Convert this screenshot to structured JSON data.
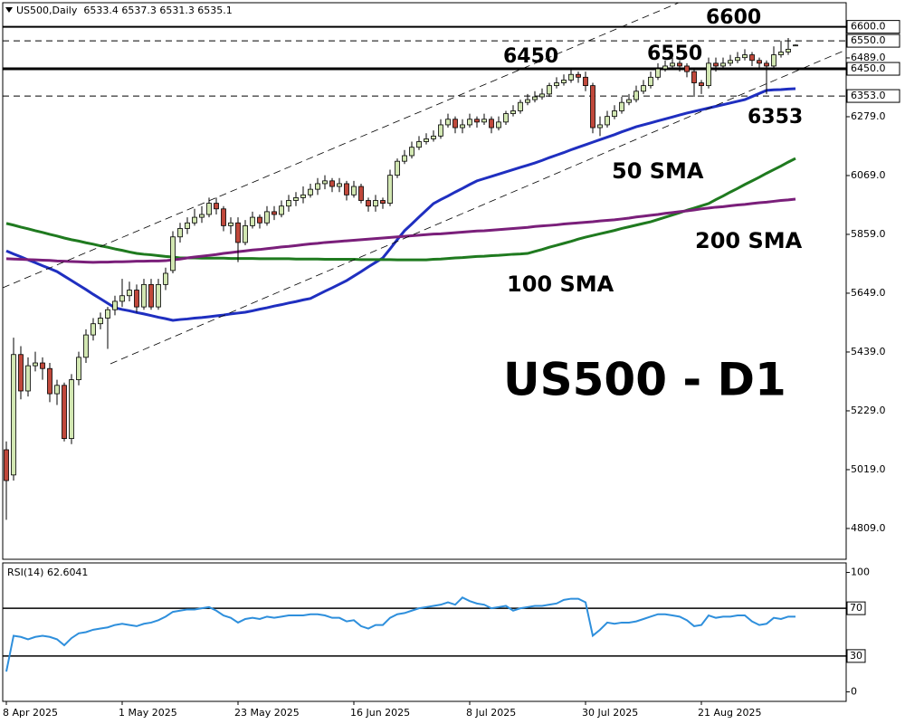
{
  "chart_data": {
    "type": "candlestick",
    "header": "US500,Daily  6533.4 6537.3 6531.3 6535.1",
    "categories": [
      "8 Apr 2025",
      null,
      null,
      null,
      null,
      null,
      null,
      null,
      null,
      null,
      null,
      null,
      null,
      null,
      null,
      null,
      "1 May 2025",
      null,
      null,
      null,
      null,
      null,
      null,
      null,
      null,
      null,
      null,
      null,
      null,
      null,
      null,
      null,
      "23 May 2025",
      null,
      null,
      null,
      null,
      null,
      null,
      null,
      null,
      null,
      null,
      null,
      null,
      null,
      null,
      null,
      "16 Jun 2025",
      null,
      null,
      null,
      null,
      null,
      null,
      null,
      null,
      null,
      null,
      null,
      null,
      null,
      null,
      null,
      "8 Jul 2025",
      null,
      null,
      null,
      null,
      null,
      null,
      null,
      null,
      null,
      null,
      null,
      null,
      null,
      null,
      null,
      "30 Jul 2025",
      null,
      null,
      null,
      null,
      null,
      null,
      null,
      null,
      null,
      null,
      null,
      null,
      null,
      null,
      null,
      "21 Aug 2025",
      null,
      null,
      null,
      null,
      null,
      null,
      null,
      null,
      null,
      null,
      null,
      null,
      null
    ],
    "open": [
      5090,
      5000,
      5430,
      5300,
      5390,
      5400,
      5380,
      5290,
      5320,
      5130,
      5340,
      5420,
      5500,
      5540,
      5560,
      5590,
      5620,
      5640,
      5660,
      5600,
      5680,
      5600,
      5680,
      5730,
      5850,
      5880,
      5900,
      5920,
      5930,
      5970,
      5950,
      5890,
      5900,
      5830,
      5890,
      5920,
      5900,
      5940,
      5930,
      5960,
      5980,
      5990,
      6000,
      6020,
      6040,
      6050,
      6030,
      6040,
      6000,
      6030,
      5980,
      5960,
      5980,
      5970,
      6070,
      6120,
      6140,
      6170,
      6190,
      6200,
      6210,
      6250,
      6270,
      6240,
      6250,
      6270,
      6260,
      6270,
      6240,
      6260,
      6290,
      6300,
      6330,
      6340,
      6350,
      6360,
      6390,
      6400,
      6410,
      6430,
      6420,
      6390,
      6240,
      6250,
      6280,
      6300,
      6330,
      6340,
      6370,
      6390,
      6420,
      6450,
      6460,
      6470,
      6460,
      6440,
      6400,
      6390,
      6470,
      6460,
      6470,
      6480,
      6490,
      6500,
      6480,
      6470,
      6460,
      6500,
      6510,
      6533
    ],
    "high": [
      5120,
      5490,
      5460,
      5420,
      5440,
      5420,
      5400,
      5340,
      5330,
      5360,
      5440,
      5520,
      5560,
      5580,
      5600,
      5640,
      5700,
      5690,
      5680,
      5700,
      5700,
      5700,
      5740,
      5870,
      5900,
      5920,
      5950,
      5960,
      5990,
      5990,
      5960,
      5920,
      5920,
      5910,
      5940,
      5930,
      5960,
      5960,
      5980,
      6000,
      6010,
      6030,
      6040,
      6060,
      6070,
      6060,
      6060,
      6050,
      6050,
      6040,
      5990,
      6000,
      5990,
      6090,
      6130,
      6160,
      6190,
      6210,
      6220,
      6230,
      6270,
      6290,
      6280,
      6270,
      6290,
      6280,
      6290,
      6280,
      6280,
      6300,
      6320,
      6340,
      6360,
      6370,
      6380,
      6400,
      6420,
      6430,
      6450,
      6440,
      6440,
      6400,
      6280,
      6300,
      6320,
      6350,
      6360,
      6390,
      6410,
      6440,
      6470,
      6480,
      6490,
      6480,
      6470,
      6450,
      6410,
      6490,
      6490,
      6490,
      6500,
      6510,
      6520,
      6510,
      6490,
      6480,
      6530,
      6550,
      6560,
      6537
    ],
    "low": [
      4840,
      4980,
      5270,
      5280,
      5370,
      5340,
      5260,
      5250,
      5120,
      5110,
      5320,
      5400,
      5480,
      5520,
      5450,
      5570,
      5600,
      5620,
      5580,
      5590,
      5590,
      5590,
      5660,
      5720,
      5830,
      5860,
      5890,
      5900,
      5920,
      5930,
      5870,
      5860,
      5760,
      5820,
      5880,
      5880,
      5890,
      5910,
      5920,
      5940,
      5960,
      5970,
      5990,
      6000,
      6020,
      6010,
      6010,
      5980,
      5990,
      5970,
      5940,
      5940,
      5950,
      5960,
      6060,
      6110,
      6130,
      6160,
      6180,
      6190,
      6200,
      6240,
      6220,
      6220,
      6240,
      6240,
      6250,
      6220,
      6230,
      6250,
      6280,
      6290,
      6320,
      6330,
      6340,
      6350,
      6380,
      6390,
      6400,
      6400,
      6370,
      6220,
      6210,
      6240,
      6270,
      6290,
      6320,
      6330,
      6360,
      6380,
      6410,
      6440,
      6450,
      6440,
      6420,
      6350,
      6360,
      6380,
      6440,
      6450,
      6460,
      6470,
      6480,
      6460,
      6450,
      6360,
      6450,
      6490,
      6500,
      6531
    ],
    "close": [
      4980,
      5430,
      5300,
      5390,
      5400,
      5380,
      5290,
      5320,
      5130,
      5340,
      5420,
      5500,
      5540,
      5560,
      5590,
      5620,
      5640,
      5660,
      5600,
      5680,
      5600,
      5680,
      5720,
      5850,
      5880,
      5900,
      5920,
      5930,
      5970,
      5950,
      5890,
      5900,
      5830,
      5890,
      5920,
      5900,
      5940,
      5930,
      5960,
      5980,
      5990,
      6000,
      6020,
      6040,
      6050,
      6030,
      6040,
      6000,
      6030,
      5980,
      5960,
      5980,
      5970,
      6070,
      6120,
      6140,
      6170,
      6190,
      6200,
      6210,
      6250,
      6270,
      6240,
      6250,
      6270,
      6260,
      6270,
      6240,
      6260,
      6290,
      6300,
      6330,
      6340,
      6350,
      6360,
      6390,
      6400,
      6410,
      6430,
      6420,
      6390,
      6240,
      6250,
      6280,
      6300,
      6330,
      6340,
      6370,
      6390,
      6420,
      6450,
      6460,
      6470,
      6460,
      6440,
      6400,
      6390,
      6470,
      6460,
      6470,
      6480,
      6490,
      6500,
      6480,
      6470,
      6460,
      6500,
      6510,
      6520,
      6535
    ],
    "up_color": "#d2e7b2",
    "down_color": "#c0483b",
    "lines": [
      {
        "label": "50 SMA",
        "color": "#1f2fc0",
        "values": [
          5800,
          5789,
          5779,
          5768,
          5758,
          5747,
          5737,
          5726,
          5710,
          5694,
          5678,
          5662,
          5645,
          5629,
          5613,
          5597,
          5591,
          5586,
          5580,
          5575,
          5569,
          5563,
          5558,
          5552,
          5555,
          5557,
          5560,
          5562,
          5565,
          5568,
          5571,
          5575,
          5578,
          5581,
          5586,
          5592,
          5597,
          5603,
          5608,
          5614,
          5619,
          5625,
          5630,
          5643,
          5656,
          5668,
          5681,
          5694,
          5710,
          5726,
          5743,
          5759,
          5775,
          5807,
          5840,
          5872,
          5896,
          5921,
          5945,
          5969,
          5983,
          5996,
          6010,
          6023,
          6037,
          6050,
          6058,
          6066,
          6074,
          6082,
          6090,
          6098,
          6106,
          6114,
          6123,
          6133,
          6142,
          6151,
          6161,
          6170,
          6179,
          6188,
          6197,
          6206,
          6215,
          6225,
          6234,
          6243,
          6250,
          6257,
          6264,
          6271,
          6278,
          6285,
          6292,
          6298,
          6304,
          6310,
          6316,
          6322,
          6328,
          6334,
          6340,
          6351,
          6362,
          6373,
          6375,
          6376,
          6378,
          6379
        ]
      },
      {
        "label": "100 SMA",
        "color": "#1f7a1f",
        "values": [
          5898,
          5892,
          5885,
          5879,
          5872,
          5866,
          5859,
          5853,
          5846,
          5840,
          5835,
          5829,
          5824,
          5818,
          5813,
          5807,
          5802,
          5796,
          5791,
          5788,
          5786,
          5783,
          5780,
          5778,
          5775,
          5775,
          5775,
          5774,
          5774,
          5774,
          5774,
          5773,
          5773,
          5773,
          5773,
          5772,
          5772,
          5772,
          5772,
          5772,
          5771,
          5771,
          5771,
          5771,
          5770,
          5770,
          5770,
          5770,
          5770,
          5769,
          5769,
          5769,
          5769,
          5769,
          5768,
          5768,
          5768,
          5768,
          5768,
          5770,
          5771,
          5773,
          5775,
          5776,
          5778,
          5780,
          5781,
          5783,
          5784,
          5786,
          5788,
          5789,
          5791,
          5798,
          5805,
          5813,
          5820,
          5827,
          5834,
          5842,
          5849,
          5855,
          5861,
          5867,
          5873,
          5880,
          5886,
          5892,
          5898,
          5904,
          5912,
          5920,
          5928,
          5936,
          5945,
          5953,
          5961,
          5969,
          5983,
          5996,
          6010,
          6023,
          6037,
          6050,
          6063,
          6077,
          6090,
          6103,
          6117,
          6130
        ]
      },
      {
        "label": "200 SMA",
        "color": "#7a1f7a",
        "values": [
          5772,
          5771,
          5770,
          5769,
          5768,
          5767,
          5766,
          5764,
          5763,
          5762,
          5761,
          5760,
          5759,
          5760,
          5760,
          5761,
          5761,
          5762,
          5763,
          5763,
          5764,
          5764,
          5765,
          5768,
          5771,
          5775,
          5778,
          5781,
          5784,
          5787,
          5791,
          5794,
          5797,
          5800,
          5803,
          5805,
          5808,
          5811,
          5814,
          5816,
          5819,
          5822,
          5825,
          5827,
          5830,
          5832,
          5834,
          5836,
          5838,
          5840,
          5842,
          5844,
          5846,
          5848,
          5850,
          5852,
          5854,
          5856,
          5858,
          5860,
          5861,
          5863,
          5865,
          5867,
          5869,
          5871,
          5872,
          5874,
          5876,
          5878,
          5880,
          5882,
          5884,
          5887,
          5889,
          5891,
          5893,
          5896,
          5898,
          5900,
          5902,
          5904,
          5907,
          5909,
          5911,
          5914,
          5917,
          5921,
          5924,
          5927,
          5930,
          5934,
          5937,
          5940,
          5943,
          5946,
          5950,
          5953,
          5956,
          5958,
          5961,
          5964,
          5966,
          5969,
          5972,
          5974,
          5977,
          5980,
          5982,
          5985
        ]
      }
    ],
    "levels": [
      {
        "value": 6600,
        "label": "6600.0",
        "text": "6600",
        "style": "solid"
      },
      {
        "value": 6550,
        "label": "6550.0",
        "text": "6550",
        "style": "dashed"
      },
      {
        "value": 6450,
        "label": "6450.0",
        "text": "6450",
        "style": "thick"
      },
      {
        "value": 6353,
        "label": "6353.0",
        "text": "6353",
        "style": "dashed"
      }
    ],
    "ylim": [
      4699,
      6686
    ],
    "yticks": [
      {
        "value": 6489,
        "label": "6489.0"
      },
      {
        "value": 6279,
        "label": "6279.0"
      },
      {
        "value": 6069,
        "label": "6069.0"
      },
      {
        "value": 5859,
        "label": "5859.0"
      },
      {
        "value": 5649,
        "label": "5649.0"
      },
      {
        "value": 5439,
        "label": "5439.0"
      },
      {
        "value": 5229,
        "label": "5229.0"
      },
      {
        "value": 5019,
        "label": "5019.0"
      },
      {
        "value": 4809,
        "label": "4809.0"
      }
    ],
    "annotation": "US500 - D1",
    "rsi": {
      "title": "RSI(14) 62.6041",
      "color": "#2e8fdc",
      "values": [
        17,
        47,
        46,
        44,
        46,
        47,
        46,
        44,
        39,
        45,
        49,
        50,
        52,
        53,
        54,
        56,
        57,
        56,
        55,
        57,
        58,
        60,
        63,
        67,
        68,
        69,
        69,
        70,
        71,
        68,
        64,
        62,
        58,
        61,
        62,
        61,
        63,
        62,
        63,
        64,
        64,
        64,
        65,
        65,
        64,
        62,
        62,
        59,
        60,
        55,
        53,
        56,
        56,
        62,
        65,
        66,
        68,
        70,
        71,
        72,
        73,
        75,
        73,
        79,
        76,
        74,
        73,
        70,
        71,
        72,
        68,
        70,
        71,
        72,
        72,
        73,
        74,
        77,
        78,
        78,
        75,
        47,
        52,
        58,
        57,
        58,
        58,
        59,
        61,
        63,
        65,
        65,
        64,
        63,
        60,
        55,
        56,
        64,
        62,
        63,
        63,
        64,
        64,
        59,
        56,
        57,
        62,
        61,
        63,
        63
      ],
      "ylim": [
        -8,
        108
      ],
      "yticks": [
        100,
        0
      ],
      "levels": [
        70,
        30
      ]
    }
  }
}
